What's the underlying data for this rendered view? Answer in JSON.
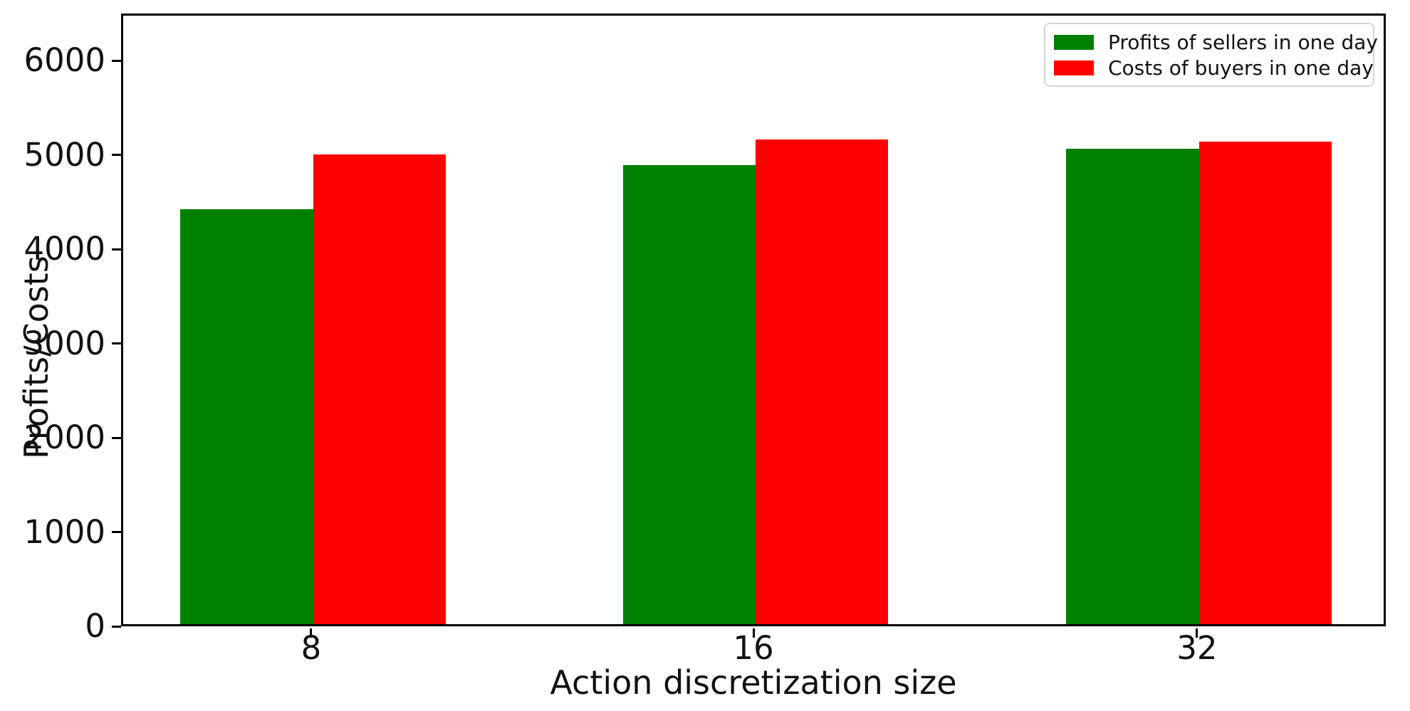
{
  "chart_data": {
    "type": "bar",
    "title": "",
    "categories": [
      "8",
      "16",
      "32"
    ],
    "series": [
      {
        "name": "Profits of sellers in one day",
        "color": "#008000",
        "values": [
          4400,
          4870,
          5040
        ]
      },
      {
        "name": "Costs of buyers in one day",
        "color": "#ff0000",
        "values": [
          4980,
          5140,
          5120
        ]
      }
    ],
    "xlabel": "Action discretization size",
    "ylabel": "Profits/Costs",
    "ylim": [
      0,
      6500
    ],
    "yticks": [
      0,
      1000,
      2000,
      3000,
      4000,
      5000,
      6000
    ],
    "legend_position": "upper right",
    "grid": false,
    "bar_grouping": "adjacent pairs, green left / red right of category center"
  }
}
